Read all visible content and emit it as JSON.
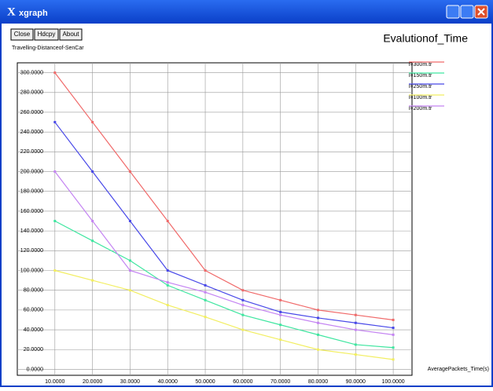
{
  "window": {
    "title": "xgraph",
    "buttons": [
      "Close",
      "Hdcpy",
      "About"
    ]
  },
  "chart_data": {
    "type": "line",
    "title": "Evalutionof_Time",
    "y_label": "Travelling-Distanceof-SenCar",
    "x_label": "AveragePackets_Time(s)",
    "x": [
      10,
      20,
      30,
      40,
      50,
      60,
      70,
      80,
      90,
      100
    ],
    "series": [
      {
        "name": "l=300m.tr",
        "color": "#f06a6a",
        "values": [
          300,
          250,
          200,
          150,
          100,
          80,
          70,
          60,
          55,
          50
        ]
      },
      {
        "name": "l=150m.tr",
        "color": "#3fe6a0",
        "values": [
          150,
          130,
          110,
          85,
          70,
          55,
          45,
          35,
          25,
          22
        ]
      },
      {
        "name": "l=250m.tr",
        "color": "#4848e8",
        "values": [
          250,
          200,
          150,
          100,
          85,
          70,
          58,
          52,
          47,
          42
        ]
      },
      {
        "name": "l=100m.tr",
        "color": "#f2ee60",
        "values": [
          100,
          90,
          80,
          65,
          53,
          40,
          30,
          20,
          15,
          10
        ]
      },
      {
        "name": "l=200m.tr",
        "color": "#c484f2",
        "values": [
          200,
          150,
          100,
          88,
          78,
          65,
          55,
          47,
          40,
          35
        ]
      }
    ],
    "xlim": [
      0,
      105
    ],
    "ylim": [
      -6,
      310
    ],
    "xticks": [
      {
        "value": 10,
        "label": "10.0000"
      },
      {
        "value": 20,
        "label": "20.0000"
      },
      {
        "value": 30,
        "label": "30.0000"
      },
      {
        "value": 40,
        "label": "40.0000"
      },
      {
        "value": 50,
        "label": "50.0000"
      },
      {
        "value": 60,
        "label": "60.0000"
      },
      {
        "value": 70,
        "label": "70.0000"
      },
      {
        "value": 80,
        "label": "80.0000"
      },
      {
        "value": 90,
        "label": "90.0000"
      },
      {
        "value": 100,
        "label": "100.0000"
      }
    ],
    "yticks": [
      {
        "value": 0,
        "label": "0.0000"
      },
      {
        "value": 20,
        "label": "20.0000"
      },
      {
        "value": 40,
        "label": "40.0000"
      },
      {
        "value": 60,
        "label": "60.0000"
      },
      {
        "value": 80,
        "label": "80.0000"
      },
      {
        "value": 100,
        "label": "100.0000"
      },
      {
        "value": 120,
        "label": "120.0000"
      },
      {
        "value": 140,
        "label": "140.0000"
      },
      {
        "value": 160,
        "label": "160.0000"
      },
      {
        "value": 180,
        "label": "180.0000"
      },
      {
        "value": 200,
        "label": "200.0000"
      },
      {
        "value": 220,
        "label": "220.0000"
      },
      {
        "value": 240,
        "label": "240.0000"
      },
      {
        "value": 260,
        "label": "260.0000"
      },
      {
        "value": 280,
        "label": "280.0000"
      },
      {
        "value": 300,
        "label": "300.0000"
      }
    ],
    "grid": true
  }
}
